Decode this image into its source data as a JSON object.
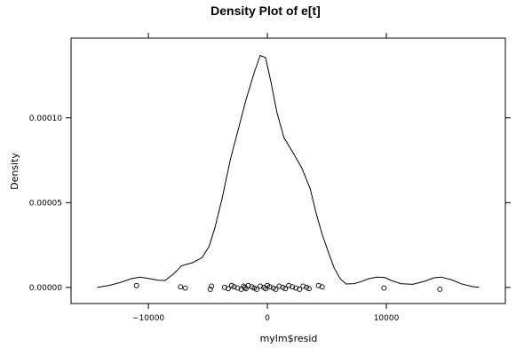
{
  "chart_data": {
    "type": "line",
    "title": "Density Plot of e[t]",
    "xlabel": "mylm$resid",
    "ylabel": "Density",
    "xlim": [
      -16500,
      20000
    ],
    "ylim": [
      -9.5e-06,
      0.000147
    ],
    "x_ticks": [
      -10000,
      0,
      10000
    ],
    "x_tick_labels": [
      "−10000",
      "0",
      "10000"
    ],
    "y_ticks": [
      0.0,
      5e-05,
      0.0001
    ],
    "y_tick_labels": [
      "0.00000",
      "0.00005",
      "0.00010"
    ],
    "grid": false,
    "legend": "none",
    "series": [
      {
        "kind": "density-line",
        "color": "#000000",
        "x": [
          -14300,
          -13400,
          -12400,
          -11400,
          -10700,
          -10000,
          -9200,
          -8600,
          -7900,
          -7200,
          -6300,
          -5500,
          -4900,
          -4400,
          -3800,
          -3100,
          -2400,
          -1800,
          -1100,
          -600,
          -150,
          300,
          800,
          1400,
          2100,
          2900,
          3600,
          4100,
          4600,
          5100,
          5600,
          6100,
          6600,
          7300,
          7900,
          8500,
          9200,
          9900,
          10400,
          11200,
          12200,
          13200,
          14000,
          14600,
          15500,
          16300,
          17200,
          17800
        ],
        "y": [
          0.0,
          1e-06,
          2.8e-06,
          5.2e-06,
          6.1e-06,
          5.3e-06,
          4.2e-06,
          4.1e-06,
          7.8e-06,
          1.28e-05,
          1.46e-05,
          1.75e-05,
          2.41e-05,
          3.54e-05,
          5.25e-05,
          7.57e-05,
          9.44e-05,
          0.0001105,
          0.0001268,
          0.0001368,
          0.0001355,
          0.0001211,
          0.0001032,
          8.82e-05,
          8.01e-05,
          7.03e-05,
          5.81e-05,
          4.37e-05,
          3.14e-05,
          2.13e-05,
          1.16e-05,
          5.3e-06,
          2e-06,
          2.2e-06,
          3.5e-06,
          5.1e-06,
          6.1e-06,
          5.8e-06,
          4.1e-06,
          2.2e-06,
          1.8e-06,
          3.6e-06,
          5.7e-06,
          6.1e-06,
          4.4e-06,
          2.1e-06,
          5e-07,
          1e-07
        ]
      },
      {
        "kind": "rug-points",
        "color": "#000000",
        "y": 0,
        "x": [
          -11000,
          -7300,
          -6900,
          -4800,
          -4700,
          -3600,
          -3300,
          -3000,
          -2800,
          -2500,
          -2200,
          -2000,
          -1900,
          -1800,
          -1600,
          -1300,
          -1100,
          -900,
          -600,
          -300,
          -150,
          0,
          200,
          500,
          700,
          1000,
          1300,
          1500,
          1800,
          2100,
          2400,
          2700,
          3000,
          3300,
          3500,
          4300,
          4600,
          9800,
          14500
        ]
      }
    ]
  }
}
